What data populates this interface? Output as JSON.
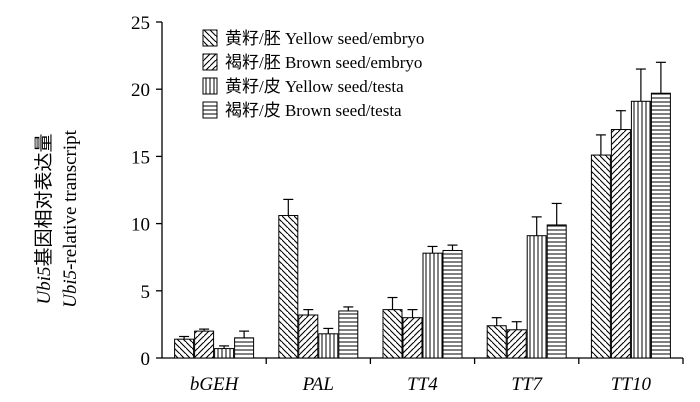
{
  "chart_data": {
    "type": "bar",
    "title": "",
    "xlabel": "",
    "ylabel_cn_italic": "Ubi5",
    "ylabel_cn_rest": "基因相对表达量",
    "ylabel_en_italic": "Ubi5",
    "ylabel_en_rest": "-relative transcript",
    "ylim": [
      0,
      25
    ],
    "yticks": [
      0,
      5,
      10,
      15,
      20,
      25
    ],
    "categories": [
      "bGEH",
      "PAL",
      "TT4",
      "TT7",
      "TT10"
    ],
    "series": [
      {
        "name": "黄籽/胚  Yellow seed/embryo",
        "pattern": "diag-back",
        "values": [
          1.4,
          10.6,
          3.6,
          2.4,
          15.1
        ],
        "errors": [
          0.2,
          1.2,
          0.9,
          0.6,
          1.5
        ]
      },
      {
        "name": "褐籽/胚  Brown seed/embryo",
        "pattern": "diag-fwd",
        "values": [
          2.0,
          3.2,
          3.0,
          2.1,
          17.0
        ],
        "errors": [
          0.15,
          0.4,
          0.6,
          0.6,
          1.4
        ]
      },
      {
        "name": "黄籽/皮  Yellow seed/testa",
        "pattern": "vertical",
        "values": [
          0.7,
          1.8,
          7.8,
          9.1,
          19.1
        ],
        "errors": [
          0.2,
          0.4,
          0.5,
          1.4,
          2.4
        ]
      },
      {
        "name": "褐籽/皮  Brown seed/testa",
        "pattern": "horizontal",
        "values": [
          1.5,
          3.5,
          8.0,
          9.9,
          19.7
        ],
        "errors": [
          0.5,
          0.3,
          0.4,
          1.6,
          2.3
        ]
      }
    ],
    "legend": "top-left inside"
  }
}
